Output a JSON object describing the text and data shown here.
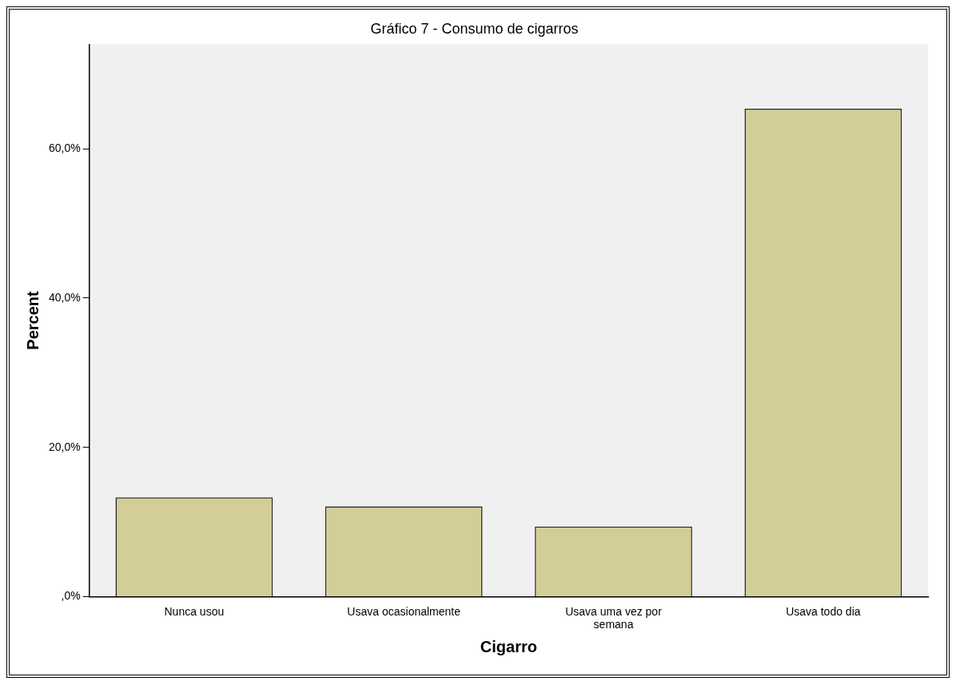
{
  "chart_data": {
    "type": "bar",
    "title": "Gráfico 7 - Consumo de cigarros",
    "xlabel": "Cigarro",
    "ylabel": "Percent",
    "categories": [
      "Nunca usou",
      "Usava ocasionalmente",
      "Usava uma vez por semana",
      "Usava todo dia"
    ],
    "values": [
      13.3,
      12.1,
      9.4,
      65.4
    ],
    "color": "#d3ce98",
    "ylim": [
      0,
      74
    ],
    "yticks": [
      {
        "value": 0,
        "label": ",0%"
      },
      {
        "value": 20,
        "label": "20,0%"
      },
      {
        "value": 40,
        "label": "40,0%"
      },
      {
        "value": 60,
        "label": "60,0%"
      }
    ],
    "grid": false,
    "legend": false
  }
}
